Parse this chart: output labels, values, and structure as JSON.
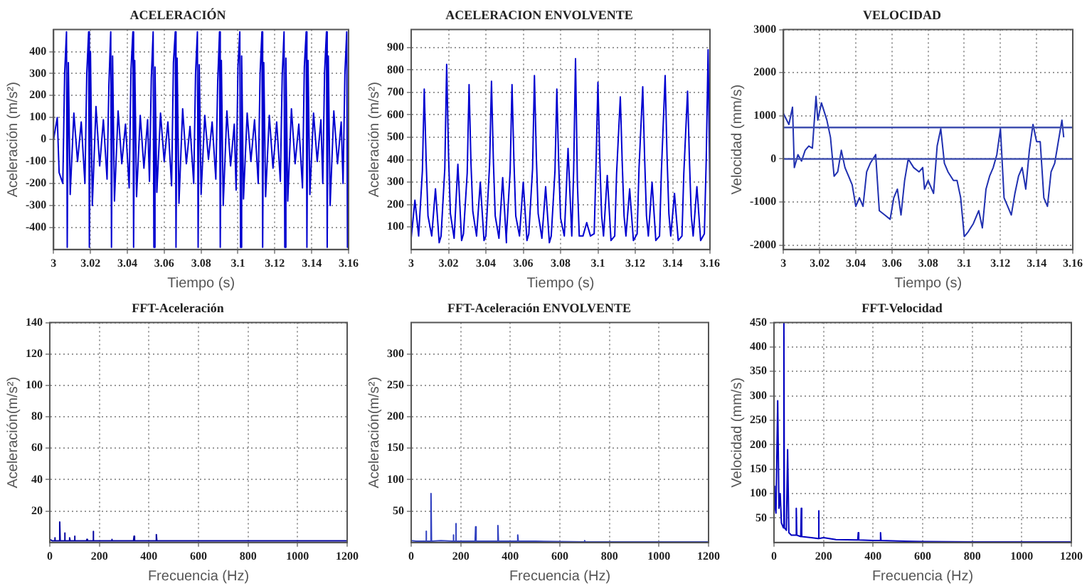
{
  "chart_data": [
    {
      "type": "line",
      "title": "ACELERACIÓN",
      "xlabel": "Tiempo (s)",
      "ylabel": "Aceleración (m/s²)",
      "color": "#0000d0",
      "grid": true,
      "x": [
        3,
        3.002,
        3.003,
        3.005,
        3.006,
        3.007,
        3.0074,
        3.008,
        3.009,
        3.011,
        3.013,
        3.015,
        3.017,
        3.018,
        3.019,
        3.0194,
        3.02,
        3.021,
        3.023,
        3.025,
        3.027,
        3.029,
        3.03,
        3.031,
        3.0314,
        3.032,
        3.033,
        3.035,
        3.037,
        3.039,
        3.041,
        3.042,
        3.043,
        3.0434,
        3.044,
        3.045,
        3.047,
        3.049,
        3.051,
        3.052,
        3.053,
        3.054,
        3.0544,
        3.055,
        3.056,
        3.058,
        3.06,
        3.062,
        3.064,
        3.065,
        3.066,
        3.0664,
        3.067,
        3.068,
        3.07,
        3.072,
        3.074,
        3.076,
        3.077,
        3.078,
        3.0784,
        3.079,
        3.08,
        3.082,
        3.084,
        3.086,
        3.088,
        3.089,
        3.09,
        3.0904,
        3.091,
        3.092,
        3.094,
        3.096,
        3.098,
        3.099,
        3.1,
        3.101,
        3.1014,
        3.102,
        3.103,
        3.105,
        3.107,
        3.109,
        3.111,
        3.112,
        3.113,
        3.1134,
        3.114,
        3.115,
        3.117,
        3.119,
        3.121,
        3.123,
        3.124,
        3.125,
        3.1254,
        3.126,
        3.127,
        3.129,
        3.131,
        3.133,
        3.135,
        3.136,
        3.137,
        3.1374,
        3.138,
        3.139,
        3.141,
        3.143,
        3.145,
        3.146,
        3.147,
        3.148,
        3.1484,
        3.149,
        3.15,
        3.152,
        3.154,
        3.156,
        3.157,
        3.158,
        3.159,
        3.1594,
        3.16
      ],
      "values": [
        0,
        100,
        -150,
        -200,
        300,
        490,
        -490,
        350,
        -250,
        120,
        -100,
        80,
        -200,
        300,
        490,
        -490,
        400,
        -300,
        150,
        -120,
        90,
        -180,
        250,
        490,
        -490,
        380,
        -280,
        130,
        -110,
        70,
        -220,
        320,
        490,
        -490,
        360,
        -260,
        110,
        -130,
        90,
        -190,
        280,
        490,
        -490,
        330,
        -240,
        120,
        -100,
        80,
        -210,
        350,
        490,
        -490,
        370,
        -290,
        140,
        -110,
        60,
        -200,
        300,
        490,
        -490,
        340,
        -250,
        110,
        -90,
        80,
        -180,
        260,
        490,
        -490,
        360,
        -300,
        130,
        -120,
        70,
        -230,
        330,
        490,
        -490,
        380,
        -270,
        120,
        -100,
        90,
        -200,
        300,
        490,
        -490,
        350,
        -260,
        110,
        -130,
        80,
        -190,
        290,
        490,
        -490,
        370,
        -280,
        140,
        -110,
        70,
        -220,
        330,
        490,
        -490,
        360,
        -250,
        120,
        -100,
        90,
        -200,
        310,
        490,
        -490,
        380,
        -300,
        130,
        -110,
        80,
        -200,
        300,
        490,
        -490,
        0
      ],
      "xlim": [
        3,
        3.16
      ],
      "xticks": [
        3,
        3.02,
        3.04,
        3.06,
        3.08,
        3.1,
        3.12,
        3.14,
        3.16
      ],
      "ylim": [
        -500,
        500
      ],
      "yticks": [
        -400,
        -300,
        -200,
        -100,
        0,
        100,
        200,
        300,
        400
      ]
    },
    {
      "type": "line",
      "title": "ACELERACION ENVOLVENTE",
      "xlabel": "Tiempo (s)",
      "ylabel": "Aceleración (m/s²)",
      "color": "#0000d0",
      "grid": true,
      "x": [
        3,
        3.002,
        3.004,
        3.006,
        3.007,
        3.008,
        3.009,
        3.011,
        3.013,
        3.015,
        3.016,
        3.018,
        3.019,
        3.02,
        3.021,
        3.023,
        3.025,
        3.027,
        3.028,
        3.03,
        3.031,
        3.032,
        3.033,
        3.035,
        3.037,
        3.039,
        3.04,
        3.042,
        3.043,
        3.044,
        3.045,
        3.047,
        3.049,
        3.051,
        3.051,
        3.053,
        3.054,
        3.055,
        3.056,
        3.058,
        3.06,
        3.062,
        3.063,
        3.065,
        3.066,
        3.067,
        3.068,
        3.07,
        3.072,
        3.074,
        3.075,
        3.077,
        3.078,
        3.079,
        3.08,
        3.082,
        3.084,
        3.086,
        3.087,
        3.088,
        3.089,
        3.09,
        3.092,
        3.094,
        3.096,
        3.098,
        3.099,
        3.1,
        3.101,
        3.102,
        3.103,
        3.105,
        3.107,
        3.109,
        3.11,
        3.112,
        3.113,
        3.114,
        3.115,
        3.117,
        3.119,
        3.121,
        3.122,
        3.124,
        3.125,
        3.126,
        3.127,
        3.129,
        3.131,
        3.133,
        3.134,
        3.136,
        3.137,
        3.138,
        3.139,
        3.141,
        3.143,
        3.145,
        3.146,
        3.148,
        3.149,
        3.15,
        3.151,
        3.153,
        3.155,
        3.157,
        3.158,
        3.159,
        3.16
      ],
      "values": [
        50,
        220,
        60,
        350,
        715,
        400,
        150,
        60,
        270,
        30,
        60,
        360,
        825,
        420,
        160,
        50,
        380,
        40,
        70,
        340,
        735,
        390,
        170,
        60,
        300,
        40,
        60,
        380,
        750,
        400,
        150,
        50,
        320,
        30,
        60,
        350,
        735,
        400,
        150,
        60,
        300,
        40,
        70,
        360,
        775,
        420,
        160,
        50,
        280,
        30,
        60,
        350,
        715,
        380,
        140,
        60,
        450,
        60,
        350,
        850,
        300,
        60,
        60,
        120,
        60,
        70,
        380,
        745,
        400,
        150,
        60,
        330,
        40,
        60,
        340,
        680,
        390,
        150,
        60,
        270,
        40,
        70,
        360,
        725,
        410,
        150,
        60,
        300,
        40,
        60,
        350,
        775,
        420,
        160,
        60,
        250,
        40,
        60,
        340,
        705,
        400,
        150,
        60,
        280,
        40,
        70,
        400,
        890,
        240
      ],
      "xlim": [
        3,
        3.16
      ],
      "xticks": [
        3,
        3.02,
        3.04,
        3.06,
        3.08,
        3.1,
        3.12,
        3.14,
        3.16
      ],
      "ylim": [
        0,
        980
      ],
      "yticks": [
        100,
        200,
        300,
        400,
        500,
        600,
        700,
        800,
        900
      ]
    },
    {
      "type": "line",
      "title": "VELOCIDAD",
      "xlabel": "Tiempo (s)",
      "ylabel": "Velocidad (mm/s)",
      "color": "#2030b0",
      "grid": true,
      "x": [
        3,
        3.003,
        3.005,
        3.006,
        3.008,
        3.01,
        3.012,
        3.014,
        3.016,
        3.018,
        3.019,
        3.021,
        3.024,
        3.026,
        3.028,
        3.03,
        3.032,
        3.034,
        3.036,
        3.038,
        3.04,
        3.042,
        3.044,
        3.046,
        3.048,
        3.051,
        3.053,
        3.056,
        3.059,
        3.061,
        3.063,
        3.065,
        3.067,
        3.069,
        3.072,
        3.075,
        3.077,
        3.078,
        3.08,
        3.083,
        3.085,
        3.087,
        3.089,
        3.091,
        3.094,
        3.096,
        3.098,
        3.1,
        3.102,
        3.105,
        3.108,
        3.11,
        3.112,
        3.114,
        3.116,
        3.118,
        3.12,
        3.122,
        3.124,
        3.126,
        3.128,
        3.13,
        3.132,
        3.134,
        3.136,
        3.138,
        3.14,
        3.142,
        3.144,
        3.146,
        3.148,
        3.15,
        3.152,
        3.154,
        3.155
      ],
      "values": [
        1050,
        800,
        1200,
        -200,
        100,
        -50,
        200,
        300,
        250,
        1450,
        900,
        1300,
        900,
        500,
        -400,
        -300,
        200,
        -200,
        -400,
        -600,
        -1100,
        -900,
        -1100,
        -300,
        -100,
        100,
        -1200,
        -1300,
        -1400,
        -900,
        -700,
        -1300,
        -500,
        0,
        -200,
        -300,
        -200,
        -700,
        -500,
        -800,
        300,
        700,
        -100,
        -300,
        -500,
        -500,
        -900,
        -1800,
        -1700,
        -1500,
        -1200,
        -1600,
        -700,
        -400,
        -200,
        100,
        700,
        -900,
        -1100,
        -1300,
        -800,
        -400,
        -200,
        -700,
        200,
        800,
        400,
        400,
        -900,
        -1100,
        -300,
        -100,
        400,
        900,
        500
      ],
      "xlim": [
        3,
        3.16
      ],
      "xticks": [
        3,
        3.02,
        3.04,
        3.06,
        3.08,
        3.1,
        3.12,
        3.14,
        3.16
      ],
      "ylim": [
        -2100,
        3000
      ],
      "yticks": [
        -2000,
        -1000,
        0,
        1000,
        2000,
        3000
      ],
      "ref_lines": [
        {
          "axis": "y",
          "value": 0,
          "color": "#4050b0"
        },
        {
          "axis": "y",
          "value": 730,
          "color": "#4050b0"
        }
      ]
    },
    {
      "type": "line",
      "title": "FFT-Aceleración",
      "xlabel": "Frecuencia (Hz)",
      "ylabel": "Aceleración(m/s²)",
      "color": "#0000a0",
      "grid": true,
      "x": [
        0,
        10,
        18,
        20,
        22,
        38,
        40,
        42,
        58,
        60,
        62,
        78,
        80,
        82,
        98,
        100,
        102,
        148,
        150,
        152,
        173,
        175,
        177,
        200,
        248,
        250,
        252,
        338,
        340,
        342,
        350,
        380,
        428,
        430,
        432,
        450,
        500,
        600,
        700,
        800,
        900,
        1000,
        1100,
        1200
      ],
      "values": [
        2,
        1,
        1,
        3,
        1,
        1,
        13,
        1,
        1,
        6,
        1,
        1,
        3,
        1,
        1,
        4,
        1,
        1,
        2,
        1,
        1,
        7,
        1,
        1,
        1,
        2,
        1,
        1,
        4,
        1,
        1,
        1,
        1,
        5,
        1,
        1,
        1,
        1,
        1,
        1,
        1,
        1,
        1,
        1
      ],
      "xlim": [
        0,
        1200
      ],
      "xticks": [
        0,
        200,
        400,
        600,
        800,
        1000,
        1200
      ],
      "ylim": [
        0,
        140
      ],
      "yticks": [
        20,
        40,
        60,
        80,
        100,
        120,
        140
      ]
    },
    {
      "type": "line",
      "title": "FFT-Aceleración ENVOLVENTE",
      "xlabel": "Frecuencia (Hz)",
      "ylabel": "Aceleración(m/s²)",
      "color": "#3040c0",
      "grid": true,
      "x": [
        0,
        20,
        58,
        60,
        62,
        78,
        80,
        82,
        120,
        168,
        170,
        172,
        178,
        180,
        182,
        258,
        260,
        262,
        348,
        350,
        352,
        428,
        430,
        432,
        500,
        698,
        700,
        702,
        800,
        1000,
        1200
      ],
      "values": [
        3,
        2,
        2,
        18,
        2,
        2,
        78,
        2,
        3,
        2,
        12,
        2,
        2,
        30,
        2,
        2,
        25,
        2,
        2,
        27,
        2,
        2,
        12,
        2,
        2,
        1,
        3,
        1,
        1,
        1,
        1
      ],
      "xlim": [
        0,
        1200
      ],
      "xticks": [
        0,
        200,
        400,
        600,
        800,
        1000,
        1200
      ],
      "ylim": [
        0,
        350
      ],
      "yticks": [
        50,
        100,
        150,
        200,
        250,
        300
      ]
    },
    {
      "type": "line",
      "title": "FFT-Velocidad",
      "xlabel": "Frecuencia (Hz)",
      "ylabel": "Velocidad (mm/s)",
      "color": "#0000c0",
      "grid": true,
      "x": [
        0,
        3,
        8,
        15,
        20,
        25,
        30,
        38,
        40,
        42,
        50,
        55,
        60,
        70,
        88,
        90,
        92,
        108,
        110,
        112,
        150,
        178,
        180,
        182,
        200,
        250,
        338,
        340,
        342,
        400,
        428,
        430,
        432,
        500,
        600,
        800,
        1000,
        1200
      ],
      "values": [
        115,
        80,
        60,
        290,
        70,
        100,
        40,
        30,
        450,
        30,
        25,
        190,
        20,
        15,
        15,
        70,
        15,
        12,
        70,
        12,
        10,
        8,
        65,
        8,
        10,
        6,
        5,
        20,
        5,
        4,
        4,
        20,
        4,
        3,
        2,
        1,
        1,
        1
      ],
      "xlim": [
        0,
        1200
      ],
      "xticks": [
        0,
        200,
        400,
        600,
        800,
        1000,
        1200
      ],
      "ylim": [
        0,
        450
      ],
      "yticks": [
        50,
        100,
        150,
        200,
        250,
        300,
        350,
        400,
        450
      ]
    }
  ]
}
